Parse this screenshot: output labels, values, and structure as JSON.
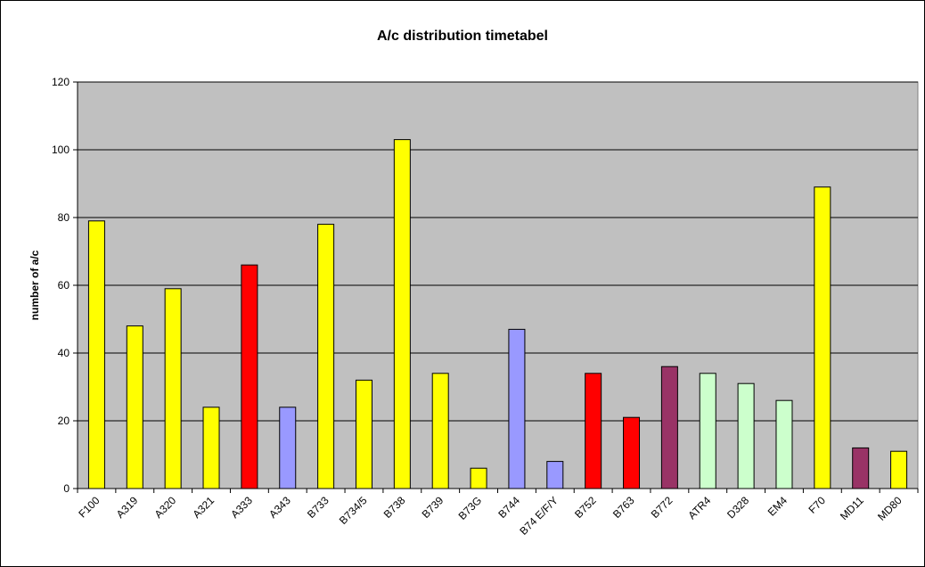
{
  "chart_data": {
    "type": "bar",
    "title": "A/c distribution timetabel",
    "xlabel": "",
    "ylabel": "number of a/c",
    "ylim": [
      0,
      120
    ],
    "yticks": [
      0,
      20,
      40,
      60,
      80,
      100,
      120
    ],
    "grid": true,
    "legend": "none",
    "plot_background": "#c0c0c0",
    "categories": [
      "F100",
      "A319",
      "A320",
      "A321",
      "A333",
      "A343",
      "B733",
      "B734/5",
      "B738",
      "B739",
      "B73G",
      "B744",
      "B74 E/F/Y",
      "B752",
      "B763",
      "B772",
      "ATR4",
      "D328",
      "EM4",
      "F70",
      "MD11",
      "MD80"
    ],
    "values": [
      79,
      48,
      59,
      24,
      66,
      24,
      78,
      32,
      103,
      34,
      6,
      47,
      8,
      34,
      21,
      36,
      34,
      31,
      26,
      89,
      12,
      11
    ],
    "colors": [
      "#ffff00",
      "#ffff00",
      "#ffff00",
      "#ffff00",
      "#ff0000",
      "#9999ff",
      "#ffff00",
      "#ffff00",
      "#ffff00",
      "#ffff00",
      "#ffff00",
      "#9999ff",
      "#9999ff",
      "#ff0000",
      "#ff0000",
      "#993366",
      "#ccffcc",
      "#ccffcc",
      "#ccffcc",
      "#ffff00",
      "#993366",
      "#ffff00"
    ]
  }
}
